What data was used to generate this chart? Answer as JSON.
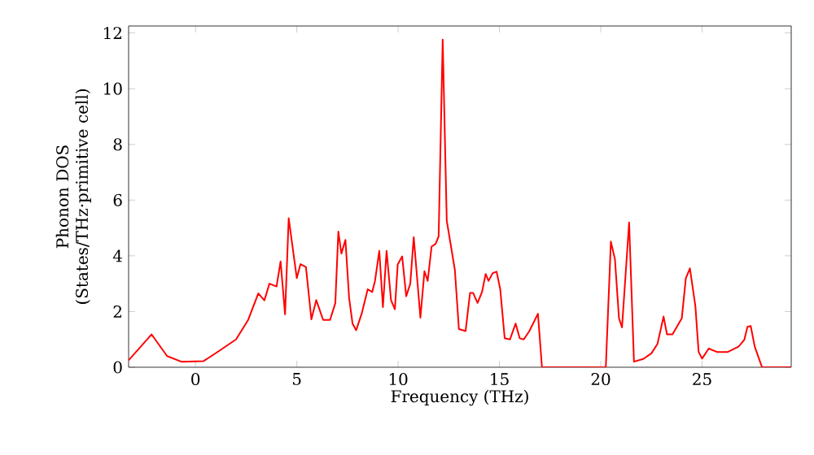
{
  "chart_data": {
    "type": "line",
    "xlabel": "Frequency (THz)",
    "ylabel": "Phonon DOS (States/THz·primitive cell)",
    "color": "#ff0000",
    "x": [
      -3.3,
      -2.17,
      -1.4,
      -0.7,
      0.4,
      1.07,
      1.5,
      2.0,
      2.6,
      3.1,
      3.4,
      3.65,
      4.0,
      4.2,
      4.42,
      4.6,
      5.0,
      5.18,
      5.45,
      5.72,
      5.96,
      6.3,
      6.64,
      6.9,
      7.05,
      7.2,
      7.4,
      7.58,
      7.75,
      7.93,
      8.2,
      8.5,
      8.72,
      8.86,
      9.07,
      9.25,
      9.43,
      9.65,
      9.84,
      9.98,
      10.2,
      10.4,
      10.6,
      10.77,
      11.1,
      11.3,
      11.46,
      11.65,
      11.85,
      12.0,
      12.2,
      12.4,
      12.8,
      13.0,
      13.33,
      13.55,
      13.7,
      13.92,
      14.14,
      14.32,
      14.46,
      14.67,
      14.86,
      15.04,
      15.26,
      15.52,
      15.8,
      16.0,
      16.2,
      16.47,
      16.9,
      17.1,
      20.25,
      20.5,
      20.7,
      20.9,
      21.05,
      21.4,
      21.64,
      22.1,
      22.5,
      22.8,
      23.1,
      23.27,
      23.54,
      24.0,
      24.2,
      24.4,
      24.67,
      24.83,
      25.0,
      25.33,
      25.73,
      26.27,
      26.8,
      27.08,
      27.24,
      27.4,
      27.6,
      27.96,
      29.4
    ],
    "values": [
      0.25,
      1.18,
      0.4,
      0.2,
      0.22,
      0.54,
      0.75,
      1.0,
      1.7,
      2.65,
      2.4,
      3.0,
      2.9,
      3.8,
      1.9,
      5.35,
      3.2,
      3.7,
      3.6,
      1.72,
      2.41,
      1.7,
      1.7,
      2.3,
      4.87,
      4.08,
      4.57,
      2.5,
      1.57,
      1.33,
      1.92,
      2.8,
      2.7,
      3.1,
      4.18,
      2.16,
      4.18,
      2.41,
      2.08,
      3.69,
      3.98,
      2.55,
      3.0,
      4.67,
      1.78,
      3.45,
      3.1,
      4.33,
      4.43,
      4.7,
      11.76,
      5.26,
      3.5,
      1.37,
      1.3,
      2.67,
      2.67,
      2.31,
      2.7,
      3.35,
      3.1,
      3.38,
      3.43,
      2.8,
      1.04,
      1.0,
      1.57,
      1.04,
      1.0,
      1.29,
      1.92,
      0,
      0,
      4.51,
      3.88,
      1.76,
      1.43,
      5.2,
      0.2,
      0.3,
      0.5,
      0.84,
      1.82,
      1.18,
      1.18,
      1.76,
      3.2,
      3.55,
      2.2,
      0.55,
      0.31,
      0.67,
      0.55,
      0.55,
      0.74,
      0.98,
      1.45,
      1.48,
      0.74,
      0,
      0
    ],
    "xlim": [
      -3.3,
      29.4
    ],
    "ylim": [
      0,
      12.25
    ],
    "xticks": [
      0,
      5,
      10,
      15,
      20,
      25
    ],
    "yticks": [
      0,
      2,
      4,
      6,
      8,
      10,
      12
    ]
  }
}
